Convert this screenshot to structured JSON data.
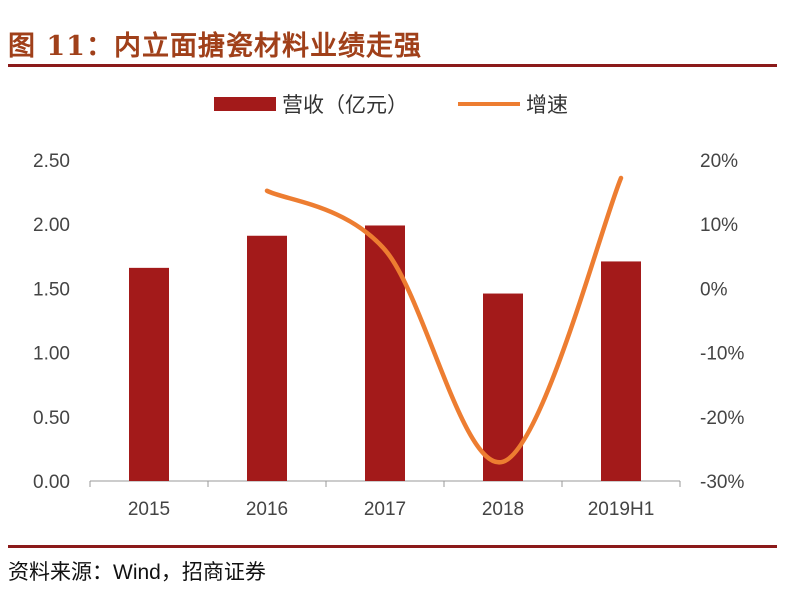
{
  "title": "图 11：内立面搪瓷材料业绩走强",
  "source": "资料来源：Wind，招商证券",
  "colors": {
    "bar": "#a31a1a",
    "line": "#ed7d31",
    "rule": "#8b1a1a",
    "title": "#a0401a"
  },
  "chart_data": {
    "type": "bar+line",
    "categories": [
      "2015",
      "2016",
      "2017",
      "2018",
      "2019H1"
    ],
    "series": [
      {
        "name": "营收（亿元）",
        "type": "bar",
        "axis": "left",
        "values": [
          1.66,
          1.91,
          1.99,
          1.46,
          1.71
        ]
      },
      {
        "name": "增速",
        "type": "line",
        "axis": "right",
        "values": [
          null,
          15.2,
          6.0,
          -27.0,
          17.2
        ]
      }
    ],
    "left_axis": {
      "ylim": [
        0,
        2.5
      ],
      "ticks": [
        "0.00",
        "0.50",
        "1.00",
        "1.50",
        "2.00",
        "2.50"
      ]
    },
    "right_axis": {
      "ylim": [
        -30,
        20
      ],
      "ticks": [
        "-30%",
        "-20%",
        "-10%",
        "0%",
        "10%",
        "20%"
      ]
    },
    "legend": "top-center",
    "grid": false
  }
}
